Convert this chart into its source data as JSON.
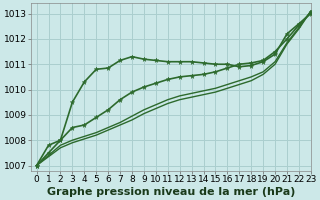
{
  "title": "Graphe pression niveau de la mer (hPa)",
  "bg_color": "#cce8e8",
  "grid_color": "#aacece",
  "line_color": "#2d6a2d",
  "marker_color": "#2d6a2d",
  "xlim": [
    -0.5,
    23
  ],
  "ylim": [
    1006.8,
    1013.4
  ],
  "yticks": [
    1007,
    1008,
    1009,
    1010,
    1011,
    1012,
    1013
  ],
  "xticks": [
    0,
    1,
    2,
    3,
    4,
    5,
    6,
    7,
    8,
    9,
    10,
    11,
    12,
    13,
    14,
    15,
    16,
    17,
    18,
    19,
    20,
    21,
    22,
    23
  ],
  "series": [
    {
      "y": [
        1007.0,
        1007.5,
        1008.0,
        1009.5,
        1010.3,
        1010.8,
        1010.85,
        1011.15,
        1011.3,
        1011.2,
        1011.15,
        1011.1,
        1011.1,
        1011.1,
        1011.05,
        1011.0,
        1011.0,
        1010.9,
        1010.95,
        1011.1,
        1011.4,
        1012.2,
        1012.6,
        1013.0
      ],
      "marker": true,
      "lw": 1.2
    },
    {
      "y": [
        1007.0,
        1007.8,
        1008.0,
        1008.5,
        1008.6,
        1008.9,
        1009.2,
        1009.6,
        1009.9,
        1010.1,
        1010.25,
        1010.4,
        1010.5,
        1010.55,
        1010.6,
        1010.7,
        1010.85,
        1011.0,
        1011.05,
        1011.15,
        1011.5,
        1012.0,
        1012.55,
        1013.05
      ],
      "marker": true,
      "lw": 1.2
    },
    {
      "y": [
        1007.0,
        1007.4,
        1007.8,
        1008.0,
        1008.15,
        1008.3,
        1008.5,
        1008.7,
        1008.95,
        1009.2,
        1009.4,
        1009.6,
        1009.75,
        1009.85,
        1009.95,
        1010.05,
        1010.2,
        1010.35,
        1010.5,
        1010.7,
        1011.1,
        1011.85,
        1012.45,
        1013.1
      ],
      "marker": false,
      "lw": 1.0
    },
    {
      "y": [
        1007.0,
        1007.35,
        1007.7,
        1007.9,
        1008.05,
        1008.2,
        1008.4,
        1008.6,
        1008.8,
        1009.05,
        1009.25,
        1009.45,
        1009.6,
        1009.7,
        1009.8,
        1009.9,
        1010.05,
        1010.2,
        1010.35,
        1010.6,
        1011.0,
        1011.8,
        1012.4,
        1013.1
      ],
      "marker": false,
      "lw": 1.0
    }
  ],
  "title_fontsize": 8,
  "tick_fontsize": 6.5,
  "title_color": "#1a3a1a"
}
